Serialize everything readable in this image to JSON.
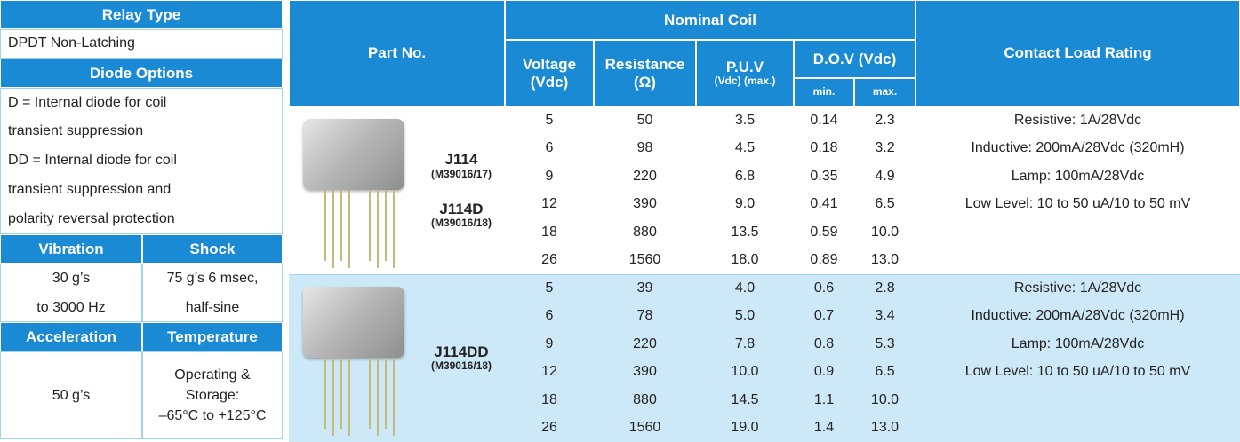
{
  "specs": {
    "relay_type": {
      "header": "Relay Type",
      "value": "DPDT Non-Latching"
    },
    "diode_options": {
      "header": "Diode Options",
      "lines": [
        "D = Internal diode for coil",
        "transient suppression",
        "DD = Internal diode for coil",
        "transient suppression and",
        "polarity reversal protection"
      ]
    },
    "vibration": {
      "header": "Vibration",
      "lines": [
        "30 g’s",
        "to 3000 Hz"
      ]
    },
    "shock": {
      "header": "Shock",
      "lines": [
        "75 g’s 6 msec,",
        "half-sine"
      ]
    },
    "acceleration": {
      "header": "Acceleration",
      "lines": [
        "50 g’s"
      ]
    },
    "temperature": {
      "header": "Temperature",
      "lines": [
        "Operating &",
        "Storage:",
        "–65°C to +125°C"
      ]
    }
  },
  "table": {
    "headers": {
      "part_no": "Part No.",
      "nominal_coil": "Nominal Coil",
      "contact_load_rating": "Contact Load Rating",
      "voltage": [
        "Voltage",
        "(Vdc)"
      ],
      "resistance": [
        "Resistance",
        "(Ω)"
      ],
      "puv": [
        "P.U.V",
        "(Vdc) (max.)"
      ],
      "dov": "D.O.V (Vdc)",
      "dov_min": "min.",
      "dov_max": "max."
    },
    "groups": [
      {
        "parts": [
          {
            "name": "J114",
            "spec": "(M39016/17)"
          },
          {
            "name": "J114D",
            "spec": "(M39016/18)"
          }
        ],
        "rows": [
          [
            "5",
            "50",
            "3.5",
            "0.14",
            "2.3"
          ],
          [
            "6",
            "98",
            "4.5",
            "0.18",
            "3.2"
          ],
          [
            "9",
            "220",
            "6.8",
            "0.35",
            "4.9"
          ],
          [
            "12",
            "390",
            "9.0",
            "0.41",
            "6.5"
          ],
          [
            "18",
            "880",
            "13.5",
            "0.59",
            "10.0"
          ],
          [
            "26",
            "1560",
            "18.0",
            "0.89",
            "13.0"
          ]
        ],
        "contact": [
          "Resistive: 1A/28Vdc",
          "Inductive: 200mA/28Vdc (320mH)",
          "Lamp: 100mA/28Vdc",
          "Low Level: 10 to 50 uA/10 to 50 mV"
        ]
      },
      {
        "parts": [
          {
            "name": "J114DD",
            "spec": "(M39016/18)"
          }
        ],
        "rows": [
          [
            "5",
            "39",
            "4.0",
            "0.6",
            "2.8"
          ],
          [
            "6",
            "78",
            "5.0",
            "0.7",
            "3.4"
          ],
          [
            "9",
            "220",
            "7.8",
            "0.8",
            "5.3"
          ],
          [
            "12",
            "390",
            "10.0",
            "0.9",
            "6.5"
          ],
          [
            "18",
            "880",
            "14.5",
            "1.1",
            "10.0"
          ],
          [
            "26",
            "1560",
            "19.0",
            "1.4",
            "13.0"
          ]
        ],
        "contact": [
          "Resistive: 1A/28Vdc",
          "Inductive: 200mA/28Vdc (320mH)",
          "Lamp: 100mA/28Vdc",
          "Low Level: 10 to 50 uA/10 to 50 mV"
        ]
      }
    ]
  }
}
